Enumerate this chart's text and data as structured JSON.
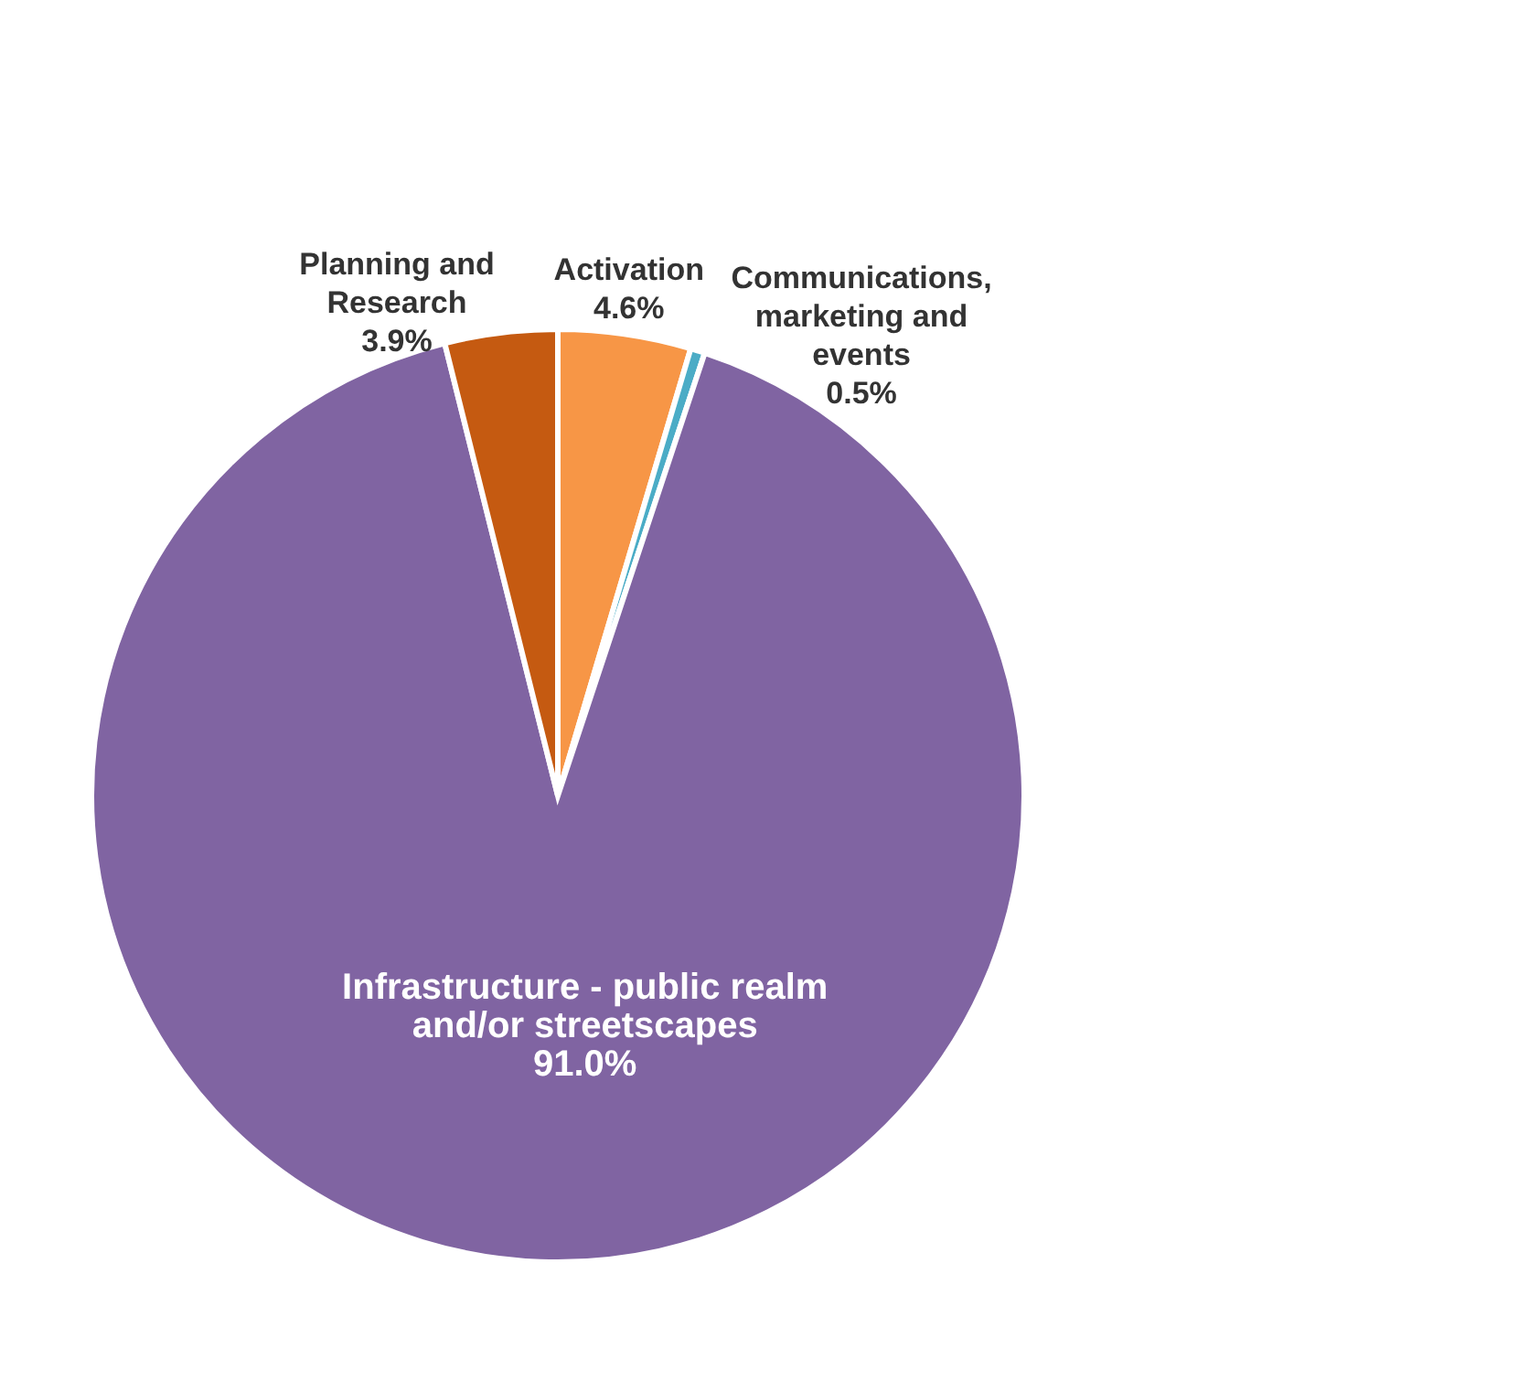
{
  "chart_data": {
    "type": "pie",
    "categories": [
      "Activation",
      "Communications, marketing and events",
      "Infrastructure - public realm and/or streetscapes",
      "Planning and Research"
    ],
    "values": [
      4.6,
      0.5,
      91.0,
      3.9
    ],
    "value_labels": [
      "4.6%",
      "0.5%",
      "91.0%",
      "3.9%"
    ],
    "colors": [
      "#f79646",
      "#4bacc6",
      "#8064a2",
      "#c55a11"
    ],
    "legend": false
  }
}
